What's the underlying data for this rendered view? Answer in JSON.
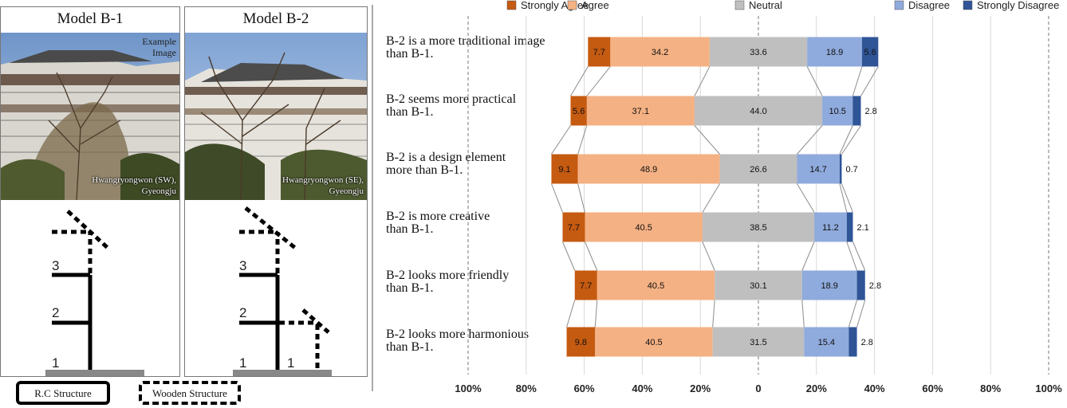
{
  "models": [
    {
      "title": "Model B-1",
      "photo_caption": "Example Image",
      "location": [
        "Hwangryongwon (SW),",
        "Gyeongju"
      ],
      "floors": [
        "3",
        "2",
        "1"
      ]
    },
    {
      "title": "Model B-2",
      "photo_caption": "",
      "location": [
        "Hwangryongwon (SE),",
        "Gyeongju"
      ],
      "floors": [
        "3",
        "2",
        "1",
        "1"
      ]
    }
  ],
  "structure_legend": {
    "rc": "R.C Structure",
    "wooden": "Wooden Structure"
  },
  "chart_data": {
    "type": "bar",
    "orientation": "horizontal",
    "stacked": "diverging",
    "legend_position": "top",
    "grid": true,
    "categories": [
      [
        "B-2 is a more traditional image",
        "than B-1."
      ],
      [
        "B-2 seems more practical",
        "than B-1."
      ],
      [
        "B-2 is a design element",
        "more than B-1."
      ],
      [
        "B-2 is more creative",
        "than B-1."
      ],
      [
        "B-2 looks more friendly",
        "than B-1."
      ],
      [
        "B-2 looks more harmonious",
        "than B-1."
      ]
    ],
    "series": [
      {
        "name": "Strongly Agree",
        "color": "#c55a11",
        "values": [
          7.7,
          5.6,
          9.1,
          7.7,
          7.7,
          9.8
        ]
      },
      {
        "name": "Agree",
        "color": "#f4b183",
        "values": [
          34.2,
          37.1,
          48.9,
          40.5,
          40.5,
          40.5
        ]
      },
      {
        "name": "Neutral",
        "color": "#bfbfbf",
        "values": [
          33.6,
          44.0,
          26.6,
          38.5,
          30.1,
          31.5
        ]
      },
      {
        "name": "Disagree",
        "color": "#8faadc",
        "values": [
          18.9,
          10.5,
          14.7,
          11.2,
          18.9,
          15.4
        ]
      },
      {
        "name": "Strongly Disagree",
        "color": "#2f5597",
        "values": [
          5.6,
          2.8,
          0.7,
          2.1,
          2.8,
          2.8
        ]
      }
    ],
    "value_labels": [
      [
        "7.7",
        "34.2",
        "33.6",
        "18.9",
        "5.6"
      ],
      [
        "5.6",
        "37.1",
        "44.0",
        "10.5",
        "2.8"
      ],
      [
        "9.1",
        "48.9",
        "26.6",
        "14.7",
        "0.7"
      ],
      [
        "7.7",
        "40.5",
        "38.5",
        "11.2",
        "2.1"
      ],
      [
        "7.7",
        "40.5",
        "30.1",
        "18.9",
        "2.8"
      ],
      [
        "9.8",
        "40.5",
        "31.5",
        "15.4",
        "2.8"
      ]
    ],
    "x_ticks": [
      "100%",
      "80%",
      "60%",
      "40%",
      "20%",
      "0",
      "20%",
      "40%",
      "60%",
      "80%",
      "100%"
    ],
    "xlim": [
      -100,
      100
    ]
  }
}
